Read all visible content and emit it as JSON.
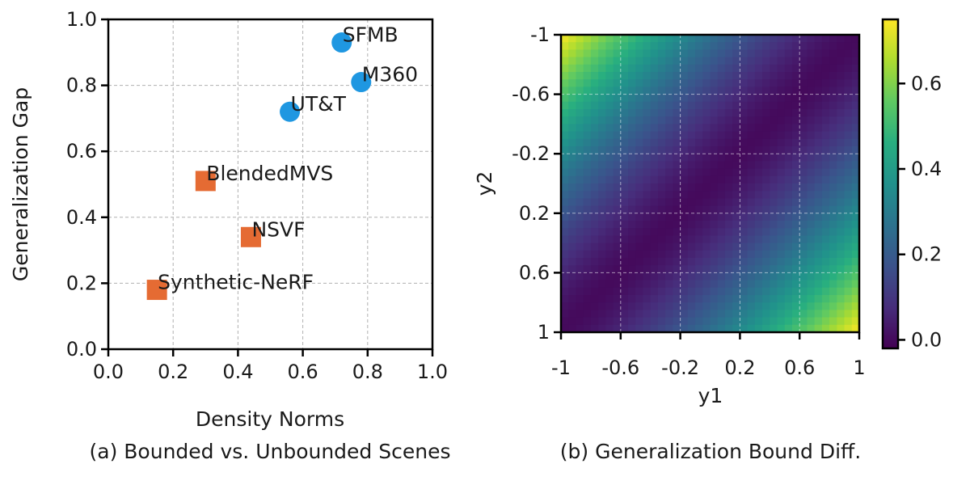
{
  "chart_data": [
    {
      "type": "scatter",
      "caption": "(a) Bounded vs. Unbounded Scenes",
      "xlabel": "Density Norms",
      "ylabel": "Generalization Gap",
      "xlim": [
        0.0,
        1.0
      ],
      "ylim": [
        0.0,
        1.0
      ],
      "xticks": [
        "0.0",
        "0.2",
        "0.4",
        "0.6",
        "0.8",
        "1.0"
      ],
      "yticks": [
        "0.0",
        "0.2",
        "0.4",
        "0.6",
        "0.8",
        "1.0"
      ],
      "grid": true,
      "series": [
        {
          "marker": "circle",
          "color": "#1f97e1",
          "points": [
            {
              "x": 0.72,
              "y": 0.93,
              "label": "SFMB"
            },
            {
              "x": 0.78,
              "y": 0.81,
              "label": "M360"
            },
            {
              "x": 0.56,
              "y": 0.72,
              "label": "UT&T"
            }
          ]
        },
        {
          "marker": "square",
          "color": "#e56b33",
          "points": [
            {
              "x": 0.3,
              "y": 0.51,
              "label": "BlendedMVS"
            },
            {
              "x": 0.44,
              "y": 0.34,
              "label": "NSVF"
            },
            {
              "x": 0.15,
              "y": 0.18,
              "label": "Synthetic-NeRF"
            }
          ]
        }
      ]
    },
    {
      "type": "heatmap",
      "caption": "(b) Generalization Bound Diff.",
      "xlabel": "y1",
      "ylabel": "y2",
      "xlim": [
        -1,
        1
      ],
      "ylim": [
        1,
        -1
      ],
      "xticks": [
        "-1",
        "-0.6",
        "-0.2",
        "0.2",
        "0.6",
        "1"
      ],
      "yticks": [
        "-1",
        "-0.6",
        "-0.2",
        "0.2",
        "0.6",
        "1"
      ],
      "colorscale": "viridis",
      "colorbar_range": [
        -0.02,
        0.75
      ],
      "colorbar_ticks": [
        "0.0",
        "0.2",
        "0.4",
        "0.6"
      ],
      "grid": true,
      "function": "|y1 + y2| ^ 1.5 / 3.77"
    }
  ]
}
